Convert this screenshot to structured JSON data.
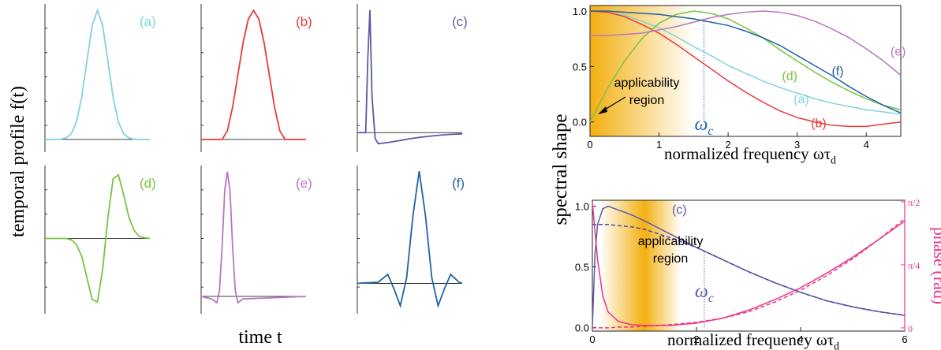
{
  "chart_data": [
    {
      "type": "line",
      "title": "(a)",
      "color": "#7fd3dc",
      "ylabel": "temporal profile f(t)",
      "xlim": [
        0,
        1
      ],
      "ylim": [
        -0.08,
        1.05
      ],
      "x": [
        0,
        0.05,
        0.1,
        0.15,
        0.2,
        0.25,
        0.3,
        0.35,
        0.4,
        0.45,
        0.5,
        0.55,
        0.6,
        0.65,
        0.7,
        0.75,
        0.8,
        0.85,
        0.9,
        0.95,
        1
      ],
      "values": [
        0,
        0,
        0,
        0.002,
        0.011,
        0.044,
        0.135,
        0.325,
        0.607,
        0.882,
        1,
        0.882,
        0.607,
        0.325,
        0.135,
        0.044,
        0.011,
        0.002,
        0,
        0,
        0
      ]
    },
    {
      "type": "line",
      "title": "(b)",
      "color": "#e8393a",
      "xlim": [
        0,
        1
      ],
      "ylim": [
        -0.08,
        1.05
      ],
      "x": [
        0,
        0.05,
        0.1,
        0.15,
        0.2,
        0.25,
        0.3,
        0.35,
        0.4,
        0.45,
        0.5,
        0.55,
        0.6,
        0.65,
        0.7,
        0.75,
        0.8,
        0.85,
        0.9,
        0.95,
        1
      ],
      "values": [
        0,
        0,
        0,
        0,
        0,
        0.067,
        0.25,
        0.5,
        0.75,
        0.933,
        1,
        0.933,
        0.75,
        0.5,
        0.25,
        0.067,
        0,
        0,
        0,
        0,
        0
      ]
    },
    {
      "type": "line",
      "title": "(c)",
      "color": "#5a5aa8",
      "xlim": [
        0,
        1
      ],
      "ylim": [
        -0.14,
        1.05
      ],
      "x": [
        0,
        0.08,
        0.1,
        0.12,
        0.14,
        0.17,
        0.2,
        0.3,
        0.4,
        0.5,
        0.6,
        0.7,
        0.8,
        0.9,
        1
      ],
      "values": [
        0,
        0,
        0.6,
        1,
        0.3,
        -0.05,
        -0.09,
        -0.08,
        -0.065,
        -0.05,
        -0.038,
        -0.028,
        -0.02,
        -0.014,
        -0.01
      ]
    },
    {
      "type": "line",
      "title": "(d)",
      "color": "#7cc242",
      "xlim": [
        0,
        1
      ],
      "ylim": [
        -1.1,
        1.1
      ],
      "x": [
        0,
        0.05,
        0.1,
        0.15,
        0.2,
        0.25,
        0.3,
        0.35,
        0.4,
        0.45,
        0.5,
        0.55,
        0.6,
        0.65,
        0.7,
        0.75,
        0.8,
        0.85,
        0.9,
        0.95,
        1
      ],
      "values": [
        0,
        0,
        0,
        0,
        0,
        -0.02,
        -0.09,
        -0.27,
        -0.59,
        -0.92,
        -0.96,
        -0.47,
        0.32,
        0.9,
        0.96,
        0.66,
        0.32,
        0.12,
        0.03,
        0.01,
        0
      ]
    },
    {
      "type": "line",
      "title": "(e)",
      "color": "#b777c0",
      "xlabel": "time t",
      "xlim": [
        0,
        1
      ],
      "ylim": [
        -0.12,
        1.05
      ],
      "x": [
        0,
        0.1,
        0.15,
        0.175,
        0.2,
        0.225,
        0.25,
        0.275,
        0.3,
        0.325,
        0.35,
        0.4,
        1
      ],
      "values": [
        0,
        -0.02,
        -0.05,
        0.05,
        0.4,
        0.85,
        1,
        0.85,
        0.4,
        0.05,
        -0.05,
        -0.02,
        0
      ]
    },
    {
      "type": "line",
      "title": "(f)",
      "color": "#1e63a8",
      "xlim": [
        0,
        1
      ],
      "ylim": [
        -0.25,
        1.05
      ],
      "x": [
        0,
        0.2,
        0.29,
        0.35,
        0.41,
        0.47,
        0.53,
        0.59,
        0.65,
        0.71,
        0.77,
        0.83,
        0.89,
        0.97,
        1
      ],
      "values": [
        0,
        0.01,
        0.08,
        -0.05,
        -0.2,
        0.05,
        0.6,
        1,
        0.6,
        0.05,
        -0.2,
        -0.05,
        0.08,
        0.01,
        0
      ]
    },
    {
      "type": "line",
      "xlabel": "normalized frequency ωτ",
      "xlabel_sub": "d",
      "ylabel": "spectral  shape",
      "xlim": [
        0,
        4.5
      ],
      "ylim": [
        -0.13,
        1.05
      ],
      "xticks": [
        0,
        1,
        2,
        3,
        4
      ],
      "yticks": [
        {
          "value": 0,
          "label": "0.0"
        },
        {
          "value": 0.5,
          "label": "0.5"
        },
        {
          "value": 1,
          "label": "1.0"
        }
      ],
      "cutoff": {
        "label": "ω",
        "sub": "c",
        "x": 1.65,
        "color": "#1e63a8"
      },
      "region": {
        "lines": [
          "applicability",
          "region"
        ],
        "x": [
          0,
          1.5
        ],
        "color": "#f3b010"
      },
      "x": [
        0,
        0.25,
        0.5,
        0.75,
        1,
        1.25,
        1.5,
        1.75,
        2,
        2.25,
        2.5,
        2.75,
        3,
        3.25,
        3.5,
        3.75,
        4,
        4.25,
        4.5
      ],
      "series": [
        {
          "name": "(a)",
          "color": "#7fd3dc",
          "values": [
            1,
            0.99,
            0.96,
            0.91,
            0.85,
            0.77,
            0.68,
            0.6,
            0.51,
            0.44,
            0.37,
            0.31,
            0.26,
            0.21,
            0.17,
            0.14,
            0.11,
            0.09,
            0.07
          ]
        },
        {
          "name": "(b)",
          "color": "#e8393a",
          "values": [
            1,
            0.99,
            0.95,
            0.88,
            0.8,
            0.7,
            0.59,
            0.48,
            0.37,
            0.27,
            0.18,
            0.1,
            0.04,
            0,
            -0.03,
            -0.04,
            -0.04,
            -0.02,
            0
          ]
        },
        {
          "name": "(d)",
          "color": "#7cc242",
          "values": [
            0,
            0.3,
            0.55,
            0.75,
            0.89,
            0.97,
            1,
            0.98,
            0.93,
            0.85,
            0.76,
            0.65,
            0.55,
            0.45,
            0.36,
            0.28,
            0.21,
            0.15,
            0.11
          ]
        },
        {
          "name": "(e)",
          "color": "#b777c0",
          "values": [
            0.78,
            0.78,
            0.79,
            0.8,
            0.83,
            0.86,
            0.9,
            0.94,
            0.97,
            0.99,
            1,
            0.99,
            0.96,
            0.91,
            0.84,
            0.76,
            0.66,
            0.55,
            0.42
          ]
        },
        {
          "name": "(f)",
          "color": "#1e63a8",
          "values": [
            1,
            1,
            0.99,
            0.98,
            0.97,
            0.95,
            0.93,
            0.9,
            0.87,
            0.82,
            0.76,
            0.69,
            0.6,
            0.51,
            0.42,
            0.32,
            0.23,
            0.15,
            0.08
          ]
        }
      ]
    },
    {
      "type": "line",
      "xlabel": "normalized frequency ωτ",
      "xlabel_sub": "d",
      "y2label": "phase (rad)",
      "y2color": "#e8338a",
      "xlim": [
        0,
        6
      ],
      "ylim": [
        -0.03,
        1.05
      ],
      "y2lim": [
        -0.04,
        1.59
      ],
      "xticks": [
        0,
        2,
        4,
        6
      ],
      "yticks": [
        {
          "value": 0,
          "label": "0.0"
        },
        {
          "value": 0.5,
          "label": "0.5"
        },
        {
          "value": 1,
          "label": "1.0"
        }
      ],
      "y2ticks": [
        0,
        {
          "value": 0.785,
          "label": "π/4"
        },
        {
          "value": 1.571,
          "label": "π/2"
        }
      ],
      "cutoff": {
        "label": "ω",
        "sub": "c",
        "x": 2.15,
        "color": "#5a5aa8"
      },
      "region": {
        "lines": [
          "applicability",
          "region"
        ],
        "x": [
          0.15,
          1.7
        ],
        "color": "#f3b010"
      },
      "x": [
        0,
        0.05,
        0.1,
        0.2,
        0.3,
        0.5,
        0.75,
        1,
        1.5,
        2,
        2.5,
        3,
        3.5,
        4,
        4.5,
        5,
        5.5,
        6
      ],
      "series": [
        {
          "name": "(c)",
          "color": "#5a5aa8",
          "values": [
            0,
            0.6,
            0.85,
            0.98,
            1,
            0.97,
            0.93,
            0.88,
            0.77,
            0.66,
            0.56,
            0.46,
            0.37,
            0.29,
            0.22,
            0.17,
            0.13,
            0.1
          ]
        },
        {
          "color": "#4a4aa0",
          "dash": true,
          "values": [
            0.85,
            0.85,
            0.85,
            0.85,
            0.85,
            0.84,
            0.83,
            0.81,
            0.74,
            0.66,
            0.56,
            0.46,
            0.37,
            0.29,
            0.22,
            0.17,
            0.13,
            0.1
          ]
        },
        {
          "color": "#e8338a",
          "axis": "y2",
          "values": [
            1.57,
            1.2,
            0.85,
            0.4,
            0.2,
            0.08,
            0.04,
            0.03,
            0.03,
            0.06,
            0.12,
            0.22,
            0.35,
            0.5,
            0.68,
            0.88,
            1.1,
            1.33
          ]
        },
        {
          "color": "#e8338a",
          "axis": "y2",
          "dash": true,
          "values": [
            0,
            0,
            0,
            0,
            0,
            0.01,
            0.01,
            0.02,
            0.04,
            0.07,
            0.12,
            0.2,
            0.32,
            0.47,
            0.65,
            0.86,
            1.1,
            1.36
          ]
        }
      ]
    }
  ]
}
